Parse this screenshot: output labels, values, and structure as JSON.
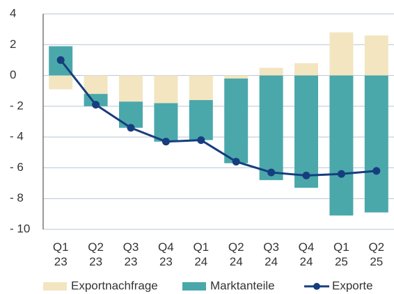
{
  "chart_data": {
    "type": "bar",
    "categories": [
      "Q1 23",
      "Q2 23",
      "Q3 23",
      "Q4 23",
      "Q1 24",
      "Q2 24",
      "Q3 24",
      "Q4 24",
      "Q1 25",
      "Q2 25"
    ],
    "series": [
      {
        "name": "Exportnachfrage",
        "color": "#f2e5c0",
        "values": [
          -0.9,
          -1.2,
          -1.7,
          -1.8,
          -1.6,
          -0.2,
          0.5,
          0.8,
          2.8,
          2.6
        ]
      },
      {
        "name": "Marktanteile",
        "color": "#4aa8ab",
        "values": [
          1.9,
          -0.8,
          -1.7,
          -2.5,
          -2.6,
          -5.5,
          -6.8,
          -7.3,
          -9.1,
          -8.9
        ]
      },
      {
        "name": "Exporte",
        "type": "line",
        "color": "#163e7e",
        "values": [
          1.0,
          -1.9,
          -3.4,
          -4.3,
          -4.2,
          -5.6,
          -6.3,
          -6.5,
          -6.4,
          -6.2
        ]
      }
    ],
    "ylim": [
      -10,
      4
    ],
    "yticks": [
      4,
      2,
      0,
      {
        "value": -2,
        "label": "- 2"
      },
      {
        "value": -4,
        "label": "- 4"
      },
      {
        "value": -6,
        "label": "- 6"
      },
      {
        "value": -8,
        "label": "- 8"
      },
      {
        "value": -10,
        "label": "- 10"
      }
    ],
    "grid": true,
    "legend": "bottom"
  }
}
